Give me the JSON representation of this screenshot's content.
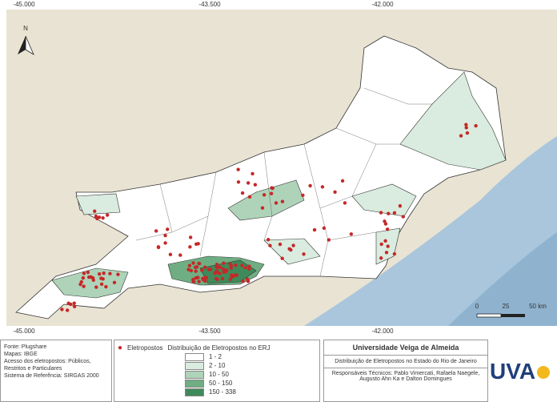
{
  "map": {
    "coords_top": [
      "-45.000",
      "-43.500",
      "-42.000"
    ],
    "coords_bottom": [
      "-45.000",
      "-43.500",
      "-42.000"
    ],
    "north": "N",
    "scale": [
      "0",
      "25",
      "50 km"
    ]
  },
  "info": [
    "Fonte: Plugshare",
    "Mapas: IBGE",
    "Acesso dos eletropostos: Públicos, Restritos e Particulares",
    "Sistema de Referência: SIRGAS 2000"
  ],
  "legend": {
    "points_label": "Eletropostos",
    "title": "Distribuição de Eletropostos no ERJ",
    "classes": [
      {
        "label": "1 - 2",
        "color": "#ffffff"
      },
      {
        "label": "2 - 10",
        "color": "#d9ecdf"
      },
      {
        "label": "10 - 50",
        "color": "#aed3b8"
      },
      {
        "label": "50 - 150",
        "color": "#6fae82"
      },
      {
        "label": "150 - 338",
        "color": "#3f8a5a"
      }
    ]
  },
  "title_box": {
    "institution": "Universidade Veiga de Almeida",
    "subtitle": "Distribuição de Eletropostos no Estado do Rio de Janeiro",
    "credits": "Responsáveis Técnicos: Pablo Vimercati, Rafaela Naegele, Augusto Ahn Ka e Dalton Domingues"
  },
  "logo": "UVA"
}
